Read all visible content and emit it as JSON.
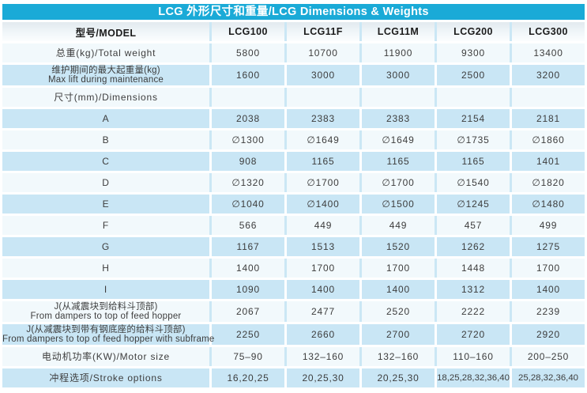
{
  "title": "LCG 外形尺寸和重量/LCG Dimensions & Weights",
  "colors": {
    "title_bg": "#1aaad7",
    "row_blue": "#c9e6f5",
    "row_light": "#f2f9fc",
    "header_row_bg": "#e9eff3",
    "title_text": "#ffffff"
  },
  "chart_data": {
    "type": "table",
    "title": "LCG 外形尺寸和重量/LCG Dimensions & Weights",
    "model_header": "型号/MODEL",
    "columns": [
      "LCG100",
      "LCG11F",
      "LCG11M",
      "LCG200",
      "LCG300"
    ],
    "rows": [
      {
        "label": [
          "总重(kg)/Total weight"
        ],
        "values": [
          "5800",
          "10700",
          "11900",
          "9300",
          "13400"
        ]
      },
      {
        "label": [
          "维护期间的最大起重量(kg)",
          "Max lift during maintenance"
        ],
        "values": [
          "1600",
          "3000",
          "3000",
          "2500",
          "3200"
        ]
      },
      {
        "label": [
          "尺寸(mm)/Dimensions"
        ],
        "values": [
          "",
          "",
          "",
          "",
          ""
        ]
      },
      {
        "label": [
          "A"
        ],
        "values": [
          "2038",
          "2383",
          "2383",
          "2154",
          "2181"
        ]
      },
      {
        "label": [
          "B"
        ],
        "values": [
          "∅1300",
          "∅1649",
          "∅1649",
          "∅1735",
          "∅1860"
        ]
      },
      {
        "label": [
          "C"
        ],
        "values": [
          "908",
          "1165",
          "1165",
          "1165",
          "1401"
        ]
      },
      {
        "label": [
          "D"
        ],
        "values": [
          "∅1320",
          "∅1700",
          "∅1700",
          "∅1540",
          "∅1820"
        ]
      },
      {
        "label": [
          "E"
        ],
        "values": [
          "∅1040",
          "∅1400",
          "∅1500",
          "∅1245",
          "∅1480"
        ]
      },
      {
        "label": [
          "F"
        ],
        "values": [
          "566",
          "449",
          "449",
          "457",
          "499"
        ]
      },
      {
        "label": [
          "G"
        ],
        "values": [
          "1167",
          "1513",
          "1520",
          "1262",
          "1275"
        ]
      },
      {
        "label": [
          "H"
        ],
        "values": [
          "1400",
          "1700",
          "1700",
          "1448",
          "1700"
        ]
      },
      {
        "label": [
          "I"
        ],
        "values": [
          "1090",
          "1400",
          "1400",
          "1312",
          "1400"
        ]
      },
      {
        "label": [
          "J(从减震块到给料斗顶部)",
          "From dampers to top of feed hopper"
        ],
        "values": [
          "2067",
          "2477",
          "2520",
          "2222",
          "2239"
        ]
      },
      {
        "label": [
          "J(从减震块到带有钢底座的给料斗顶部)",
          "From dampers to top of feed hopper with subframe"
        ],
        "values": [
          "2250",
          "2660",
          "2700",
          "2720",
          "2920"
        ]
      },
      {
        "label": [
          "电动机功率(KW)/Motor size"
        ],
        "values": [
          "75–90",
          "132–160",
          "132–160",
          "110–160",
          "200–250"
        ]
      },
      {
        "label": [
          "冲程选项/Stroke options"
        ],
        "values": [
          "16,20,25",
          "20,25,30",
          "20,25,30",
          "18,25,28,32,36,40",
          "25,28,32,36,40"
        ]
      }
    ]
  }
}
